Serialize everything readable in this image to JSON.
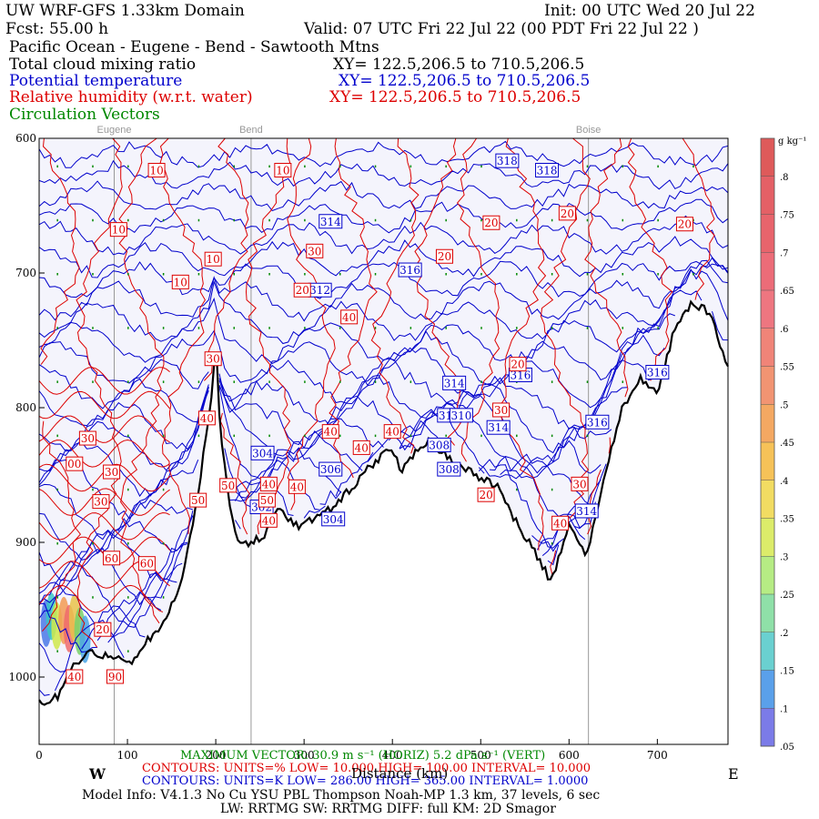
{
  "header": {
    "title_left": "UW WRF-GFS 1.33km Domain",
    "init": "Init: 00 UTC Wed 20 Jul 22",
    "fcst": "Fcst:   55.00 h",
    "valid": "Valid: 07 UTC Fri 22 Jul 22   (00 PDT Fri 22 Jul 22  )",
    "location": "Pacific Ocean - Eugene - Bend - Sawtooth Mtns",
    "field1": "Total cloud mixing ratio",
    "field1_xy": "XY= 122.5,206.5 to 710.5,206.5",
    "field2": "Potential temperature",
    "field2_xy": "XY= 122.5,206.5 to 710.5,206.5",
    "field3": "Relative humidity (w.r.t. water)",
    "field3_xy": "XY= 122.5,206.5 to 710.5,206.5",
    "field4": "Circulation Vectors"
  },
  "colors": {
    "blue": "#0000cc",
    "red": "#dd0000",
    "green": "#008800",
    "terrain": "#000000",
    "background": "#f4f4fc"
  },
  "chart_data": {
    "type": "cross-section",
    "x_ticks": [
      "0",
      "100",
      "200",
      "300",
      "400",
      "500",
      "600",
      "700"
    ],
    "y_ticks": [
      "600",
      "700",
      "800",
      "900",
      "1000"
    ],
    "x_label": "Distance (km)",
    "xlim": [
      0,
      780
    ],
    "ylim": [
      1050,
      600
    ],
    "left_end": "W",
    "right_end": "E",
    "places": [
      {
        "name": "Eugene",
        "x": 85
      },
      {
        "name": "Bend",
        "x": 240
      },
      {
        "name": "Boise",
        "x": 622
      }
    ],
    "terrain_profile": {
      "x": [
        0,
        20,
        40,
        60,
        85,
        100,
        120,
        140,
        160,
        175,
        185,
        195,
        200,
        205,
        215,
        225,
        240,
        255,
        270,
        290,
        305,
        330,
        350,
        380,
        400,
        410,
        420,
        440,
        460,
        480,
        500,
        520,
        540,
        560,
        580,
        600,
        620,
        640,
        660,
        680,
        700,
        720,
        740,
        760,
        780
      ],
      "p": [
        1020,
        1015,
        990,
        982,
        985,
        992,
        975,
        960,
        930,
        885,
        840,
        792,
        750,
        815,
        870,
        900,
        900,
        895,
        875,
        888,
        885,
        875,
        862,
        840,
        830,
        848,
        838,
        825,
        835,
        845,
        852,
        858,
        885,
        905,
        930,
        888,
        910,
        852,
        800,
        778,
        790,
        740,
        722,
        730,
        770
      ]
    },
    "colorbar": {
      "unit": "g kg⁻¹",
      "labels": [
        ".8",
        ".75",
        ".7",
        ".65",
        ".6",
        ".55",
        ".5",
        ".45",
        ".4",
        ".35",
        ".3",
        ".25",
        ".2",
        ".15",
        ".1",
        ".05"
      ]
    },
    "theta_labels": [
      {
        "label": "318",
        "x": 530,
        "p": 617
      },
      {
        "label": "318",
        "x": 575,
        "p": 624
      },
      {
        "label": "314",
        "x": 330,
        "p": 662
      },
      {
        "label": "316",
        "x": 420,
        "p": 698
      },
      {
        "label": "312",
        "x": 318,
        "p": 713
      },
      {
        "label": "314",
        "x": 470,
        "p": 782
      },
      {
        "label": "316",
        "x": 545,
        "p": 776
      },
      {
        "label": "316",
        "x": 700,
        "p": 774
      },
      {
        "label": "314",
        "x": 520,
        "p": 815
      },
      {
        "label": "316",
        "x": 632,
        "p": 811
      },
      {
        "label": "312",
        "x": 464,
        "p": 806
      },
      {
        "label": "310",
        "x": 478,
        "p": 806
      },
      {
        "label": "308",
        "x": 453,
        "p": 828
      },
      {
        "label": "308",
        "x": 464,
        "p": 846
      },
      {
        "label": "304",
        "x": 253,
        "p": 834
      },
      {
        "label": "306",
        "x": 330,
        "p": 846
      },
      {
        "label": "302",
        "x": 252,
        "p": 874
      },
      {
        "label": "304",
        "x": 333,
        "p": 883
      },
      {
        "label": "314",
        "x": 620,
        "p": 877
      }
    ],
    "rh_labels": [
      {
        "label": "10",
        "x": 133,
        "p": 624
      },
      {
        "label": "10",
        "x": 276,
        "p": 624
      },
      {
        "label": "10",
        "x": 90,
        "p": 668
      },
      {
        "label": "10",
        "x": 160,
        "p": 707
      },
      {
        "label": "10",
        "x": 197,
        "p": 690
      },
      {
        "label": "20",
        "x": 512,
        "p": 663
      },
      {
        "label": "20",
        "x": 598,
        "p": 656
      },
      {
        "label": "20",
        "x": 731,
        "p": 664
      },
      {
        "label": "20",
        "x": 459,
        "p": 688
      },
      {
        "label": "30",
        "x": 312,
        "p": 684
      },
      {
        "label": "20",
        "x": 298,
        "p": 713
      },
      {
        "label": "40",
        "x": 351,
        "p": 733
      },
      {
        "label": "30",
        "x": 197,
        "p": 764
      },
      {
        "label": "40",
        "x": 190,
        "p": 808
      },
      {
        "label": "20",
        "x": 542,
        "p": 768
      },
      {
        "label": "30",
        "x": 523,
        "p": 802
      },
      {
        "label": "40",
        "x": 330,
        "p": 818
      },
      {
        "label": "40",
        "x": 400,
        "p": 818
      },
      {
        "label": "40",
        "x": 365,
        "p": 830
      },
      {
        "label": "30",
        "x": 55,
        "p": 823
      },
      {
        "label": "00",
        "x": 40,
        "p": 842
      },
      {
        "label": "30",
        "x": 82,
        "p": 848
      },
      {
        "label": "30",
        "x": 70,
        "p": 870
      },
      {
        "label": "50",
        "x": 214,
        "p": 858
      },
      {
        "label": "40",
        "x": 260,
        "p": 857
      },
      {
        "label": "40",
        "x": 292,
        "p": 859
      },
      {
        "label": "50",
        "x": 180,
        "p": 869
      },
      {
        "label": "50",
        "x": 258,
        "p": 869
      },
      {
        "label": "40",
        "x": 260,
        "p": 884
      },
      {
        "label": "20",
        "x": 506,
        "p": 865
      },
      {
        "label": "30",
        "x": 612,
        "p": 857
      },
      {
        "label": "40",
        "x": 590,
        "p": 886
      },
      {
        "label": "60",
        "x": 82,
        "p": 912
      },
      {
        "label": "60",
        "x": 122,
        "p": 916
      },
      {
        "label": "20",
        "x": 72,
        "p": 965
      },
      {
        "label": "40",
        "x": 40,
        "p": 1000
      },
      {
        "label": "90",
        "x": 86,
        "p": 1000
      }
    ]
  },
  "footer": {
    "max_vector": "MAXIMUM VECTOR: 30.9 m s⁻¹ (HORIZ)   5.2 dPa s⁻¹ (VERT)",
    "rh_contours": "CONTOURS:  UNITS=%  LOW=   10.000     HIGH=   100.00        INTERVAL=   10.000",
    "theta_contours": "CONTOURS:  UNITS=K  LOW=   286.00     HIGH=   365.00        INTERVAL=   1.0000",
    "x_axis_label": "Distance (km)",
    "model_info": "Model Info: V4.1.3    No Cu   YSU PBL  Thompson    Noah-MP    1.3 km,  37 levels,   6 sec",
    "model_info2": "LW: RRTMG  SW: RRTMG    DIFF: full   KM: 2D Smagor"
  }
}
